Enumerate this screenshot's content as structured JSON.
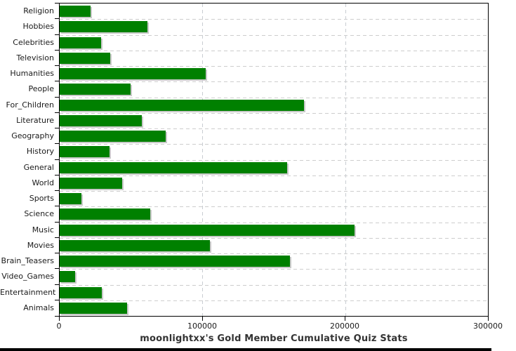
{
  "title": "moonlightxx's Gold Member Cumulative Quiz Stats",
  "colors": {
    "bar": "#008000",
    "bar_shadow": "#c9c9c9",
    "grid": "#cdcdcd",
    "axis": "#000000",
    "label": "#1a1a1a",
    "title": "#333333",
    "bottom_strip": "#000000",
    "background": "#ffffff"
  },
  "chart_data": {
    "type": "bar",
    "orientation": "horizontal",
    "title": "moonlightxx's Gold Member Cumulative Quiz Stats",
    "categories": [
      "Religion",
      "Hobbies",
      "Celebrities",
      "Television",
      "Humanities",
      "People",
      "For_Children",
      "Literature",
      "Geography",
      "History",
      "General",
      "World",
      "Sports",
      "Science",
      "Music",
      "Movies",
      "Brain_Teasers",
      "Video_Games",
      "Entertainment",
      "Animals"
    ],
    "values": [
      21500,
      61500,
      29000,
      35500,
      102500,
      49500,
      171000,
      57500,
      74500,
      35000,
      159500,
      44000,
      15000,
      63500,
      206500,
      105000,
      161500,
      11000,
      29500,
      47000
    ],
    "xlabel": "",
    "ylabel": "",
    "xlim": [
      0,
      300000
    ],
    "x_ticks": [
      0,
      100000,
      200000,
      300000
    ],
    "x_tick_labels": [
      "0",
      "100000",
      "200000",
      "300000"
    ],
    "grid": "dashed",
    "legend": "none",
    "bar_color": "#008000"
  }
}
